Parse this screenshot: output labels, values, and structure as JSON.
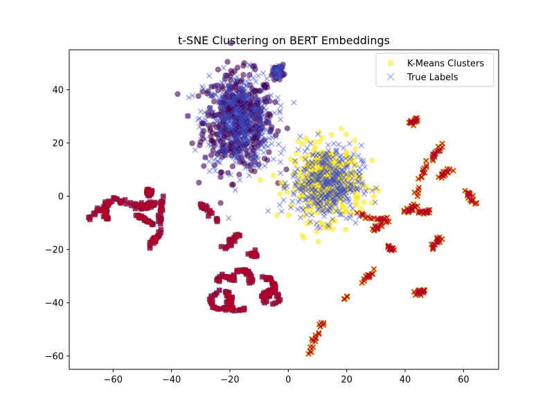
{
  "chart_data": {
    "type": "scatter",
    "title": "t-SNE Clustering on BERT Embeddings",
    "xlabel": "",
    "ylabel": "",
    "xlim": [
      -75,
      72
    ],
    "ylim": [
      -65,
      55
    ],
    "x_ticks": [
      -60,
      -40,
      -20,
      0,
      20,
      40,
      60
    ],
    "y_ticks": [
      -60,
      -40,
      -20,
      0,
      20,
      40
    ],
    "x_tick_labels": [
      "−60",
      "−40",
      "−20",
      "0",
      "20",
      "40",
      "60"
    ],
    "y_tick_labels": [
      "−60",
      "−40",
      "−20",
      "0",
      "20",
      "40"
    ],
    "grid": false,
    "legend": {
      "position": "top-right",
      "entries": [
        {
          "label": "K-Means Clusters",
          "marker": "circle",
          "color": "#fde725"
        },
        {
          "label": "True Labels",
          "marker": "x",
          "color": "#3b4cc0"
        }
      ]
    },
    "colors": {
      "purple": "#440154",
      "yellow": "#fde725",
      "blue": "#3b4cc0",
      "red": "#b40426"
    },
    "series": [
      {
        "name": "K-Means Clusters",
        "marker": "circle",
        "points": [
          {
            "cluster": "purple",
            "x": [
              -28,
              -6
            ],
            "y": [
              12,
              44
            ]
          },
          {
            "cluster": "purple",
            "x": [
              -5,
              -2
            ],
            "y": [
              45,
              49
            ]
          },
          {
            "cluster": "yellow",
            "x": [
              1,
              26
            ],
            "y": [
              -12,
              20
            ]
          },
          {
            "cluster": "purple",
            "x": [
              -68,
              -42
            ],
            "y": [
              -20,
              2
            ]
          },
          {
            "cluster": "purple",
            "x": [
              -31,
              -22
            ],
            "y": [
              -42,
              -3
            ]
          },
          {
            "cluster": "purple",
            "x": [
              -20,
              -4
            ],
            "y": [
              -45,
              -14
            ]
          },
          {
            "cluster": "yellow",
            "x": [
              7,
              64
            ],
            "y": [
              -59,
              30
            ]
          }
        ]
      },
      {
        "name": "True Labels",
        "marker": "x",
        "points": [
          {
            "cluster": "blue",
            "x": [
              -28,
              -2
            ],
            "y": [
              12,
              49
            ]
          },
          {
            "cluster": "blue",
            "x": [
              1,
              26
            ],
            "y": [
              -12,
              20
            ]
          },
          {
            "cluster": "red",
            "x": [
              -68,
              -4
            ],
            "y": [
              -45,
              2
            ]
          },
          {
            "cluster": "red",
            "x": [
              7,
              64
            ],
            "y": [
              -59,
              30
            ]
          }
        ]
      }
    ],
    "clusters": [
      {
        "id": "top-blob",
        "center": [
          -17,
          28
        ],
        "spread": [
          6,
          9
        ]
      },
      {
        "id": "top-right-small",
        "center": [
          -3.5,
          47
        ],
        "spread": [
          1,
          1.2
        ]
      },
      {
        "id": "mid-blob",
        "center": [
          13,
          5
        ],
        "spread": [
          6,
          7
        ]
      },
      {
        "id": "left-arcs",
        "center": [
          -55,
          -7
        ],
        "spread": [
          8,
          6
        ]
      },
      {
        "id": "strip-a",
        "from": [
          -30,
          -3
        ],
        "to": [
          -24,
          -9
        ]
      },
      {
        "id": "strip-b",
        "from": [
          -22,
          -20
        ],
        "to": [
          -17,
          -14
        ]
      },
      {
        "id": "strip-c",
        "from": [
          -13,
          -21
        ],
        "to": [
          -10,
          -23
        ]
      },
      {
        "id": "ring-a",
        "center": [
          -23,
          -40
        ],
        "spread": [
          3,
          3
        ]
      },
      {
        "id": "ring-b",
        "center": [
          -12,
          -34
        ],
        "spread": [
          5,
          6
        ]
      },
      {
        "id": "strip-d",
        "from": [
          19,
          -39
        ],
        "to": [
          29,
          -28
        ]
      },
      {
        "id": "strip-e",
        "from": [
          7,
          -59
        ],
        "to": [
          12,
          -47
        ]
      },
      {
        "id": "strip-f",
        "from": [
          24,
          -7
        ],
        "to": [
          34,
          -9
        ]
      },
      {
        "id": "strip-g",
        "from": [
          42,
          27
        ],
        "to": [
          44,
          29
        ]
      },
      {
        "id": "strip-h",
        "from": [
          42,
          -6
        ],
        "to": [
          48,
          15
        ]
      },
      {
        "id": "strip-i",
        "from": [
          49,
          14
        ],
        "to": [
          53,
          19
        ]
      },
      {
        "id": "strip-j",
        "from": [
          51,
          7
        ],
        "to": [
          55,
          10
        ]
      },
      {
        "id": "strip-k",
        "from": [
          61,
          2
        ],
        "to": [
          64,
          -3
        ]
      },
      {
        "id": "strip-l",
        "from": [
          49,
          -20
        ],
        "to": [
          52,
          -15
        ]
      },
      {
        "id": "strip-m",
        "from": [
          43,
          -37
        ],
        "to": [
          47,
          -35
        ]
      },
      {
        "id": "strip-n",
        "from": [
          34,
          -19
        ],
        "to": [
          36,
          -20
        ]
      },
      {
        "id": "strip-o",
        "from": [
          29,
          -13
        ],
        "to": [
          34,
          -9
        ]
      },
      {
        "id": "strip-p",
        "from": [
          40,
          -6
        ],
        "to": [
          44,
          -4
        ]
      },
      {
        "id": "strip-q",
        "from": [
          45,
          -6
        ],
        "to": [
          49,
          -6
        ]
      }
    ]
  }
}
